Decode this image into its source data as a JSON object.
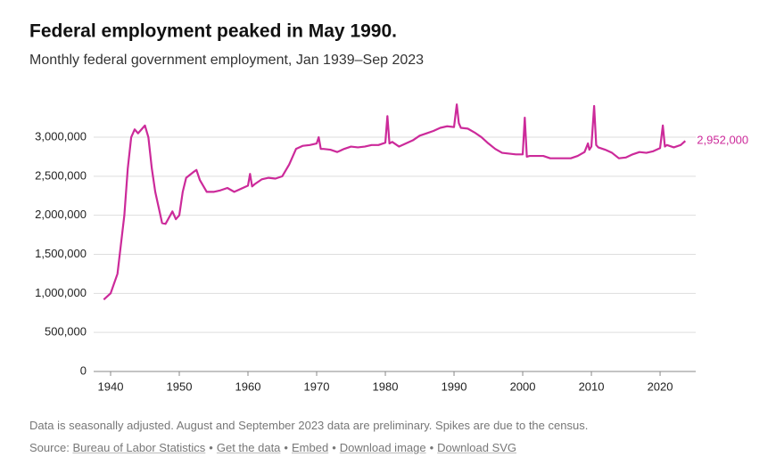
{
  "chart_data": {
    "type": "line",
    "title": "Federal employment peaked in May 1990.",
    "subtitle": "Monthly federal government employment, Jan 1939–Sep 2023",
    "color": "#cc2a9a",
    "grid": true,
    "x": [
      1939,
      1940,
      1941,
      1942,
      1942.5,
      1943,
      1943.5,
      1944,
      1945,
      1945.5,
      1946,
      1946.5,
      1947,
      1947.5,
      1948,
      1949,
      1949.5,
      1950,
      1950.5,
      1951,
      1952,
      1952.5,
      1953,
      1954,
      1955,
      1956,
      1957,
      1958,
      1959,
      1960,
      1960.3,
      1960.6,
      1961,
      1962,
      1963,
      1964,
      1965,
      1966,
      1967,
      1968,
      1969,
      1970,
      1970.3,
      1970.6,
      1971,
      1972,
      1973,
      1974,
      1975,
      1976,
      1977,
      1978,
      1979,
      1980,
      1980.3,
      1980.6,
      1981,
      1982,
      1983,
      1984,
      1985,
      1986,
      1987,
      1988,
      1989,
      1990,
      1990.4,
      1990.7,
      1991,
      1992,
      1993,
      1994,
      1995,
      1996,
      1997,
      1998,
      1999,
      2000,
      2000.3,
      2000.6,
      2001,
      2002,
      2003,
      2004,
      2005,
      2006,
      2007,
      2008,
      2009,
      2009.5,
      2009.7,
      2010,
      2010.4,
      2010.7,
      2011,
      2012,
      2013,
      2014,
      2015,
      2016,
      2017,
      2018,
      2019,
      2020,
      2020.4,
      2020.7,
      2021,
      2022,
      2023,
      2023.67
    ],
    "values": [
      920000,
      1000000,
      1250000,
      2000000,
      2600000,
      3000000,
      3100000,
      3050000,
      3150000,
      3000000,
      2600000,
      2300000,
      2100000,
      1900000,
      1890000,
      2050000,
      1950000,
      2000000,
      2300000,
      2480000,
      2550000,
      2580000,
      2450000,
      2300000,
      2300000,
      2320000,
      2350000,
      2300000,
      2340000,
      2380000,
      2530000,
      2370000,
      2400000,
      2460000,
      2480000,
      2470000,
      2500000,
      2650000,
      2850000,
      2890000,
      2900000,
      2920000,
      3000000,
      2850000,
      2850000,
      2840000,
      2810000,
      2850000,
      2880000,
      2870000,
      2880000,
      2900000,
      2900000,
      2930000,
      3270000,
      2920000,
      2940000,
      2880000,
      2920000,
      2960000,
      3020000,
      3050000,
      3080000,
      3120000,
      3140000,
      3130000,
      3420000,
      3180000,
      3120000,
      3110000,
      3060000,
      3000000,
      2920000,
      2850000,
      2800000,
      2790000,
      2780000,
      2780000,
      3250000,
      2750000,
      2760000,
      2760000,
      2760000,
      2730000,
      2730000,
      2730000,
      2730000,
      2760000,
      2810000,
      2920000,
      2840000,
      2880000,
      3400000,
      2900000,
      2870000,
      2840000,
      2800000,
      2730000,
      2740000,
      2780000,
      2810000,
      2800000,
      2820000,
      2860000,
      3150000,
      2880000,
      2900000,
      2870000,
      2900000,
      2952000
    ],
    "end_label": "2,952,000",
    "xlim": [
      1939,
      2023.67
    ],
    "xticks": [
      1940,
      1950,
      1960,
      1970,
      1980,
      1990,
      2000,
      2010,
      2020
    ],
    "ylim": [
      0,
      3500000
    ],
    "yticks": [
      0,
      {
        "value": 500000,
        "label": "500,000"
      },
      {
        "value": 1000000,
        "label": "1,000,000"
      },
      {
        "value": 1500000,
        "label": "1,500,000"
      },
      {
        "value": 2000000,
        "label": "2,000,000"
      },
      {
        "value": 2500000,
        "label": "2,500,000"
      },
      {
        "value": 3000000,
        "label": "3,000,000"
      }
    ],
    "note": "Data is seasonally adjusted. August and September 2023 data are preliminary. Spikes are due to the census.",
    "source": {
      "prefix": "Source:",
      "separator": "•",
      "links": [
        "Bureau of Labor Statistics",
        "Get the data",
        "Embed",
        "Download image",
        "Download SVG"
      ]
    }
  }
}
